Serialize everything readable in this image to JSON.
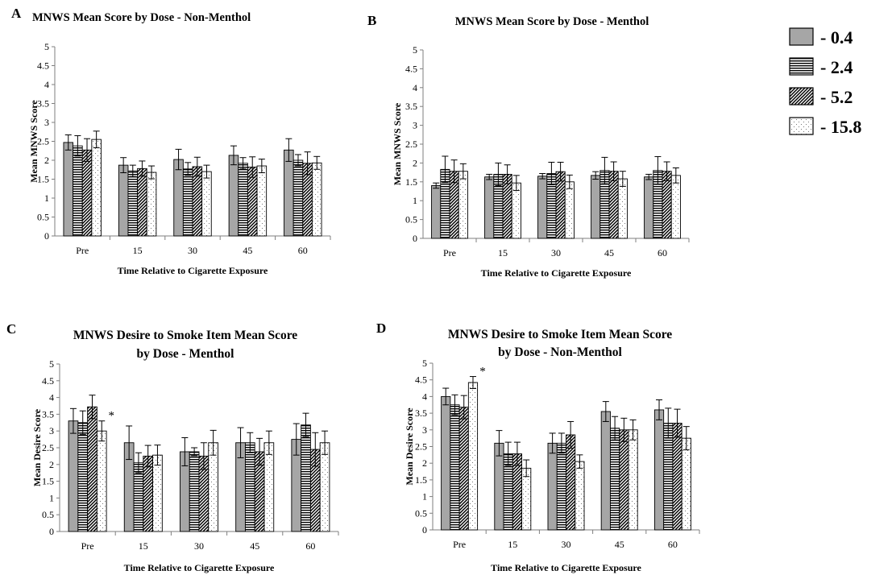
{
  "legend": {
    "items": [
      {
        "label": "- 0.4",
        "pattern": "solid-gray"
      },
      {
        "label": "- 2.4",
        "pattern": "horizontal-lines"
      },
      {
        "label": "- 5.2",
        "pattern": "diagonal-lines"
      },
      {
        "label": "- 15.8",
        "pattern": "dots"
      }
    ]
  },
  "colors": {
    "bar_gray": "#a6a6a6",
    "axis": "#7f7f7f",
    "gridline": "#bfbfbf"
  },
  "chart_data": [
    {
      "panel": "A",
      "type": "bar",
      "title": [
        "MNWS Mean Score by Dose - Non-Menthol"
      ],
      "xlabel": "Time Relative to Cigarette Exposure",
      "ylabel": "Mean MNWS Score",
      "ylim": [
        0,
        5
      ],
      "yticks": [
        "0",
        "0.5",
        "1",
        "1.5",
        "2",
        "2.5",
        "3",
        "3.5",
        "4",
        "4.5",
        "5"
      ],
      "categories": [
        "Pre",
        "15",
        "30",
        "45",
        "60"
      ],
      "series": [
        {
          "values": [
            2.47,
            1.87,
            2.02,
            2.13,
            2.27
          ],
          "errors": [
            0.2,
            0.2,
            0.27,
            0.25,
            0.3
          ]
        },
        {
          "values": [
            2.38,
            1.72,
            1.77,
            1.92,
            2.0
          ],
          "errors": [
            0.27,
            0.15,
            0.17,
            0.15,
            0.15
          ]
        },
        {
          "values": [
            2.27,
            1.78,
            1.83,
            1.82,
            1.92
          ],
          "errors": [
            0.3,
            0.2,
            0.25,
            0.27,
            0.3
          ]
        },
        {
          "values": [
            2.55,
            1.68,
            1.7,
            1.85,
            1.93
          ],
          "errors": [
            0.22,
            0.17,
            0.17,
            0.18,
            0.17
          ]
        }
      ],
      "annotations": []
    },
    {
      "panel": "B",
      "type": "bar",
      "title": [
        "MNWS Mean Score by Dose - Menthol"
      ],
      "xlabel": "Time Relative to Cigarette Exposure",
      "ylabel": "Mean MNWS Score",
      "ylim": [
        0,
        5
      ],
      "yticks": [
        "0",
        "0.5",
        "1",
        "1.5",
        "2",
        "2.5",
        "3",
        "3.5",
        "4",
        "4.5",
        "5"
      ],
      "categories": [
        "Pre",
        "15",
        "30",
        "45",
        "60"
      ],
      "series": [
        {
          "values": [
            1.4,
            1.63,
            1.65,
            1.67,
            1.63
          ],
          "errors": [
            0.07,
            0.07,
            0.07,
            0.1,
            0.07
          ]
        },
        {
          "values": [
            1.83,
            1.7,
            1.72,
            1.8,
            1.8
          ],
          "errors": [
            0.35,
            0.3,
            0.3,
            0.35,
            0.37
          ]
        },
        {
          "values": [
            1.78,
            1.7,
            1.77,
            1.78,
            1.78
          ],
          "errors": [
            0.3,
            0.25,
            0.25,
            0.25,
            0.25
          ]
        },
        {
          "values": [
            1.78,
            1.47,
            1.5,
            1.58,
            1.67
          ],
          "errors": [
            0.2,
            0.2,
            0.18,
            0.2,
            0.2
          ]
        }
      ],
      "annotations": []
    },
    {
      "panel": "C",
      "type": "bar",
      "title": [
        "MNWS Desire to Smoke Item Mean Score",
        "by Dose - Menthol"
      ],
      "xlabel": "Time Relative to Cigarette Exposure",
      "ylabel": "Mean Desire Score",
      "ylim": [
        0,
        5
      ],
      "yticks": [
        "0",
        "0.5",
        "1",
        "1.5",
        "2",
        "2.5",
        "3",
        "3.5",
        "4",
        "4.5",
        "5"
      ],
      "categories": [
        "Pre",
        "15",
        "30",
        "45",
        "60"
      ],
      "series": [
        {
          "values": [
            3.3,
            2.65,
            2.38,
            2.65,
            2.75
          ],
          "errors": [
            0.37,
            0.5,
            0.42,
            0.45,
            0.47
          ]
        },
        {
          "values": [
            3.25,
            2.05,
            2.38,
            2.65,
            3.18
          ],
          "errors": [
            0.35,
            0.3,
            0.12,
            0.3,
            0.35
          ]
        },
        {
          "values": [
            3.72,
            2.25,
            2.25,
            2.38,
            2.45
          ],
          "errors": [
            0.35,
            0.32,
            0.4,
            0.4,
            0.5
          ]
        },
        {
          "values": [
            3.0,
            2.28,
            2.65,
            2.65,
            2.65
          ],
          "errors": [
            0.3,
            0.3,
            0.37,
            0.35,
            0.35
          ]
        }
      ],
      "annotations": [
        {
          "text": "*",
          "category": "Pre",
          "series": 3
        }
      ]
    },
    {
      "panel": "D",
      "type": "bar",
      "title": [
        "MNWS Desire to Smoke Item Mean Score",
        "by Dose - Non-Menthol"
      ],
      "xlabel": "Time Relative to Cigarette Exposure",
      "ylabel": "Mean Desire Score",
      "ylim": [
        0,
        5
      ],
      "yticks": [
        "0",
        "0.5",
        "1",
        "1.5",
        "2",
        "2.5",
        "3",
        "3.5",
        "4",
        "4.5",
        "5"
      ],
      "categories": [
        "Pre",
        "15",
        "30",
        "45",
        "60"
      ],
      "series": [
        {
          "values": [
            4.0,
            2.6,
            2.6,
            3.55,
            3.6
          ],
          "errors": [
            0.25,
            0.38,
            0.3,
            0.3,
            0.3
          ]
        },
        {
          "values": [
            3.75,
            2.28,
            2.6,
            3.05,
            3.2
          ],
          "errors": [
            0.3,
            0.35,
            0.3,
            0.35,
            0.45
          ]
        },
        {
          "values": [
            3.68,
            2.28,
            2.85,
            3.0,
            3.2
          ],
          "errors": [
            0.35,
            0.35,
            0.4,
            0.35,
            0.42
          ]
        },
        {
          "values": [
            4.42,
            1.85,
            2.05,
            3.0,
            2.75
          ],
          "errors": [
            0.18,
            0.25,
            0.2,
            0.3,
            0.35
          ]
        }
      ],
      "annotations": [
        {
          "text": "*",
          "category": "Pre",
          "series": 3
        }
      ]
    }
  ]
}
